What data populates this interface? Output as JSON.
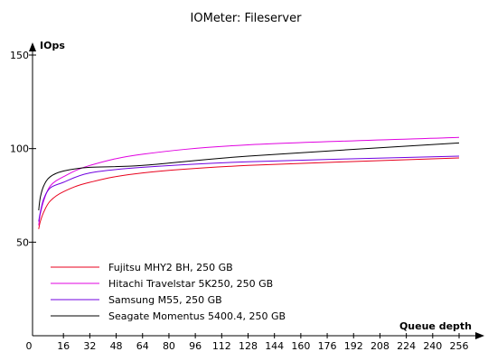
{
  "chart_data": {
    "type": "line",
    "title": "IOMeter: Fileserver",
    "ylabel": "IOps",
    "xlabel": "Queue depth",
    "xlim": [
      0,
      260
    ],
    "ylim": [
      0,
      150
    ],
    "x_ticks": [
      0,
      16,
      32,
      48,
      64,
      80,
      96,
      112,
      128,
      144,
      160,
      176,
      192,
      208,
      224,
      240,
      256
    ],
    "y_ticks": [
      50,
      100,
      150
    ],
    "grid": false,
    "legend_position": "bottom-left",
    "series": [
      {
        "name": "Fujitsu MHY2 BH, 250 GB",
        "color": "#e8001c",
        "x": [
          1,
          2,
          4,
          8,
          16,
          32,
          64,
          128,
          256
        ],
        "y": [
          57,
          61,
          66,
          72,
          77,
          82,
          87,
          91,
          95
        ]
      },
      {
        "name": "Hitachi Travelstar 5K250, 250 GB",
        "color": "#e000e0",
        "x": [
          1,
          2,
          4,
          8,
          16,
          32,
          64,
          128,
          256
        ],
        "y": [
          59,
          65,
          72,
          80,
          85,
          91,
          97,
          102,
          106
        ]
      },
      {
        "name": "Samsung M55, 250 GB",
        "color": "#7000e0",
        "x": [
          1,
          2,
          4,
          8,
          16,
          32,
          64,
          128,
          256
        ],
        "y": [
          61,
          66,
          73,
          79,
          82,
          87,
          90,
          93,
          96
        ]
      },
      {
        "name": "Seagate Momentus 5400.4, 250 GB",
        "color": "#000000",
        "x": [
          1,
          2,
          4,
          8,
          16,
          32,
          64,
          128,
          256
        ],
        "y": [
          67,
          74,
          80,
          85,
          88,
          90,
          91,
          96,
          103
        ]
      }
    ]
  }
}
